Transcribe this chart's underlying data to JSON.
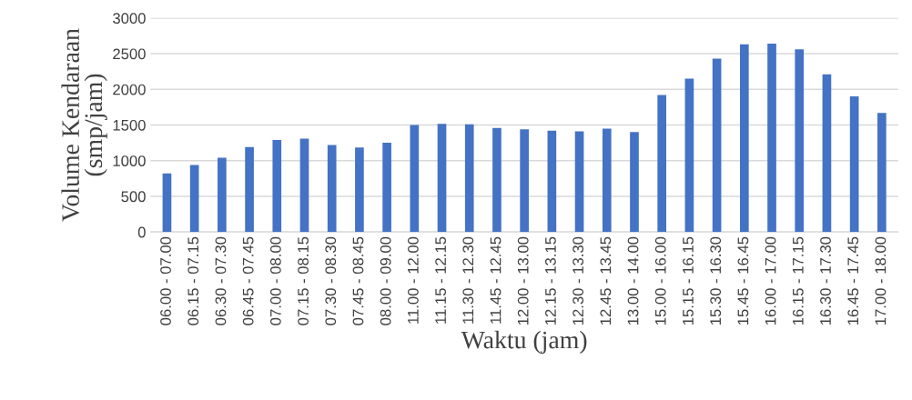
{
  "chart_data": {
    "type": "bar",
    "xlabel": "Waktu (jam)",
    "ylabel": "Volume Kendaraan\n(smp/jam)",
    "categories": [
      "06.00 - 07.00",
      "06.15 - 07.15",
      "06.30 - 07.30",
      "06.45 - 07.45",
      "07.00 - 08.00",
      "07.15 - 08.15",
      "07.30 - 08.30",
      "07.45 - 08.45",
      "08.00 - 09.00",
      "11.00 - 12.00",
      "11.15 - 12.15",
      "11.30 - 12.30",
      "11.45 - 12.45",
      "12.00 - 13.00",
      "12.15 - 13.15",
      "12.30 - 13.30",
      "12.45 - 13.45",
      "13.00 - 14.00",
      "15.00 - 16.00",
      "15.15 - 16.15",
      "15.30 - 16.30",
      "15.45 - 16.45",
      "16.00 - 17.00",
      "16.15 - 17.15",
      "16.30 - 17.30",
      "16.45 - 17.45",
      "17.00 - 18.00"
    ],
    "values": [
      820,
      940,
      1040,
      1190,
      1290,
      1310,
      1220,
      1185,
      1250,
      1500,
      1515,
      1510,
      1460,
      1440,
      1420,
      1410,
      1450,
      1400,
      1920,
      2150,
      2430,
      2630,
      2640,
      2560,
      2210,
      1900,
      1670
    ],
    "color": "#4472c4",
    "ylim": [
      0,
      3000
    ],
    "yticks": [
      0,
      500,
      1000,
      1500,
      2000,
      2500,
      3000
    ],
    "grid": "y"
  }
}
